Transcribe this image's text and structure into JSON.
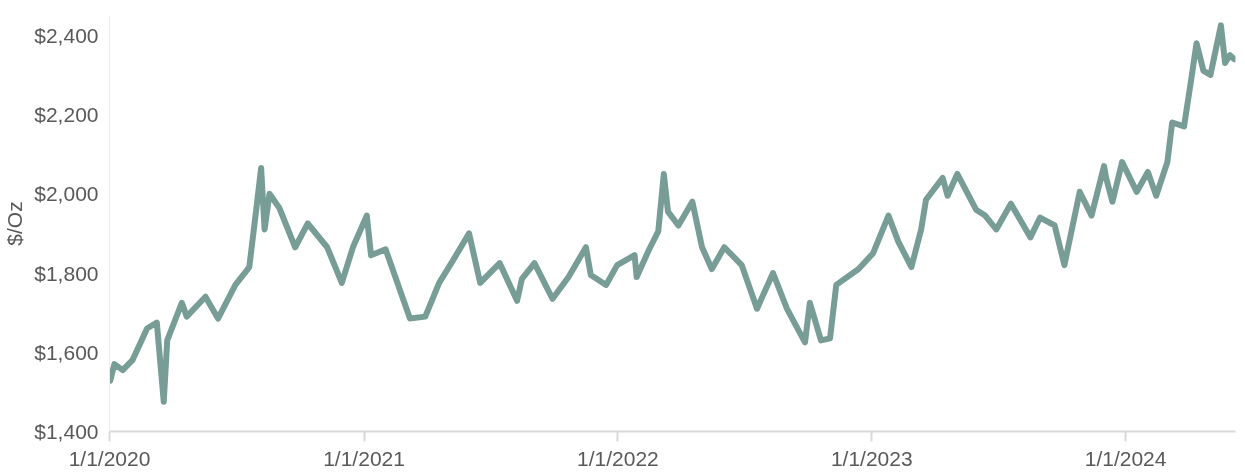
{
  "chart_data": {
    "type": "line",
    "ylabel": "$/Oz",
    "grid": false,
    "marker": "none",
    "line_style": "solid",
    "xlim": [
      "2020-01-01",
      "2024-06-07"
    ],
    "xticks": [
      {
        "value": "2020-01-01",
        "label": "1/1/2020"
      },
      {
        "value": "2021-01-01",
        "label": "1/1/2021"
      },
      {
        "value": "2022-01-01",
        "label": "1/1/2022"
      },
      {
        "value": "2023-01-01",
        "label": "1/1/2023"
      },
      {
        "value": "2024-01-01",
        "label": "1/1/2024"
      }
    ],
    "ylim": [
      1400,
      2450
    ],
    "yticks": [
      {
        "value": 1400,
        "label": "$1,400"
      },
      {
        "value": 1600,
        "label": "$1,600"
      },
      {
        "value": 1800,
        "label": "$1,800"
      },
      {
        "value": 2000,
        "label": "$2,000"
      },
      {
        "value": 2200,
        "label": "$2,200"
      },
      {
        "value": 2400,
        "label": "$2,400"
      }
    ],
    "series": [
      {
        "color": "#779d96",
        "x": [
          "2020-01-02",
          "2020-01-08",
          "2020-01-20",
          "2020-02-03",
          "2020-02-24",
          "2020-03-09",
          "2020-03-19",
          "2020-03-24",
          "2020-04-14",
          "2020-04-21",
          "2020-05-18",
          "2020-06-05",
          "2020-06-30",
          "2020-07-20",
          "2020-07-31",
          "2020-08-06",
          "2020-08-11",
          "2020-08-18",
          "2020-09-01",
          "2020-09-24",
          "2020-10-12",
          "2020-11-09",
          "2020-11-30",
          "2020-12-16",
          "2021-01-05",
          "2021-01-11",
          "2021-02-01",
          "2021-02-26",
          "2021-03-08",
          "2021-03-30",
          "2021-04-19",
          "2021-05-10",
          "2021-06-01",
          "2021-06-17",
          "2021-07-15",
          "2021-08-09",
          "2021-08-16",
          "2021-09-03",
          "2021-09-29",
          "2021-10-22",
          "2021-11-16",
          "2021-11-23",
          "2021-12-15",
          "2021-12-31",
          "2022-01-25",
          "2022-01-28",
          "2022-02-15",
          "2022-02-28",
          "2022-03-08",
          "2022-03-14",
          "2022-03-29",
          "2022-04-18",
          "2022-05-02",
          "2022-05-16",
          "2022-06-03",
          "2022-06-28",
          "2022-07-20",
          "2022-08-12",
          "2022-09-01",
          "2022-09-27",
          "2022-10-04",
          "2022-10-20",
          "2022-11-02",
          "2022-11-11",
          "2022-12-13",
          "2023-01-03",
          "2023-01-25",
          "2023-02-08",
          "2023-02-27",
          "2023-03-13",
          "2023-03-20",
          "2023-04-13",
          "2023-04-20",
          "2023-05-04",
          "2023-05-31",
          "2023-06-13",
          "2023-06-29",
          "2023-07-20",
          "2023-08-17",
          "2023-08-31",
          "2023-09-21",
          "2023-10-05",
          "2023-10-27",
          "2023-11-13",
          "2023-12-01",
          "2023-12-04",
          "2023-12-13",
          "2023-12-27",
          "2024-01-17",
          "2024-02-02",
          "2024-02-14",
          "2024-03-01",
          "2024-03-08",
          "2024-03-25",
          "2024-04-04",
          "2024-04-12",
          "2024-04-22",
          "2024-05-02",
          "2024-05-17",
          "2024-05-23",
          "2024-05-30",
          "2024-06-05"
        ],
        "values": [
          1528,
          1570,
          1555,
          1580,
          1660,
          1675,
          1475,
          1630,
          1725,
          1690,
          1740,
          1685,
          1770,
          1815,
          1975,
          2065,
          1910,
          2000,
          1965,
          1865,
          1925,
          1865,
          1775,
          1865,
          1945,
          1845,
          1860,
          1735,
          1685,
          1690,
          1775,
          1835,
          1900,
          1775,
          1825,
          1730,
          1785,
          1825,
          1735,
          1790,
          1865,
          1795,
          1770,
          1820,
          1845,
          1790,
          1860,
          1905,
          2050,
          1955,
          1920,
          1980,
          1865,
          1810,
          1865,
          1820,
          1710,
          1800,
          1710,
          1625,
          1725,
          1630,
          1635,
          1770,
          1810,
          1850,
          1945,
          1880,
          1815,
          1910,
          1985,
          2040,
          1995,
          2050,
          1960,
          1945,
          1910,
          1975,
          1890,
          1940,
          1920,
          1820,
          2005,
          1945,
          2070,
          2040,
          1980,
          2080,
          2005,
          2055,
          1995,
          2080,
          2180,
          2170,
          2285,
          2380,
          2310,
          2300,
          2425,
          2330,
          2350,
          2340
        ]
      }
    ]
  }
}
